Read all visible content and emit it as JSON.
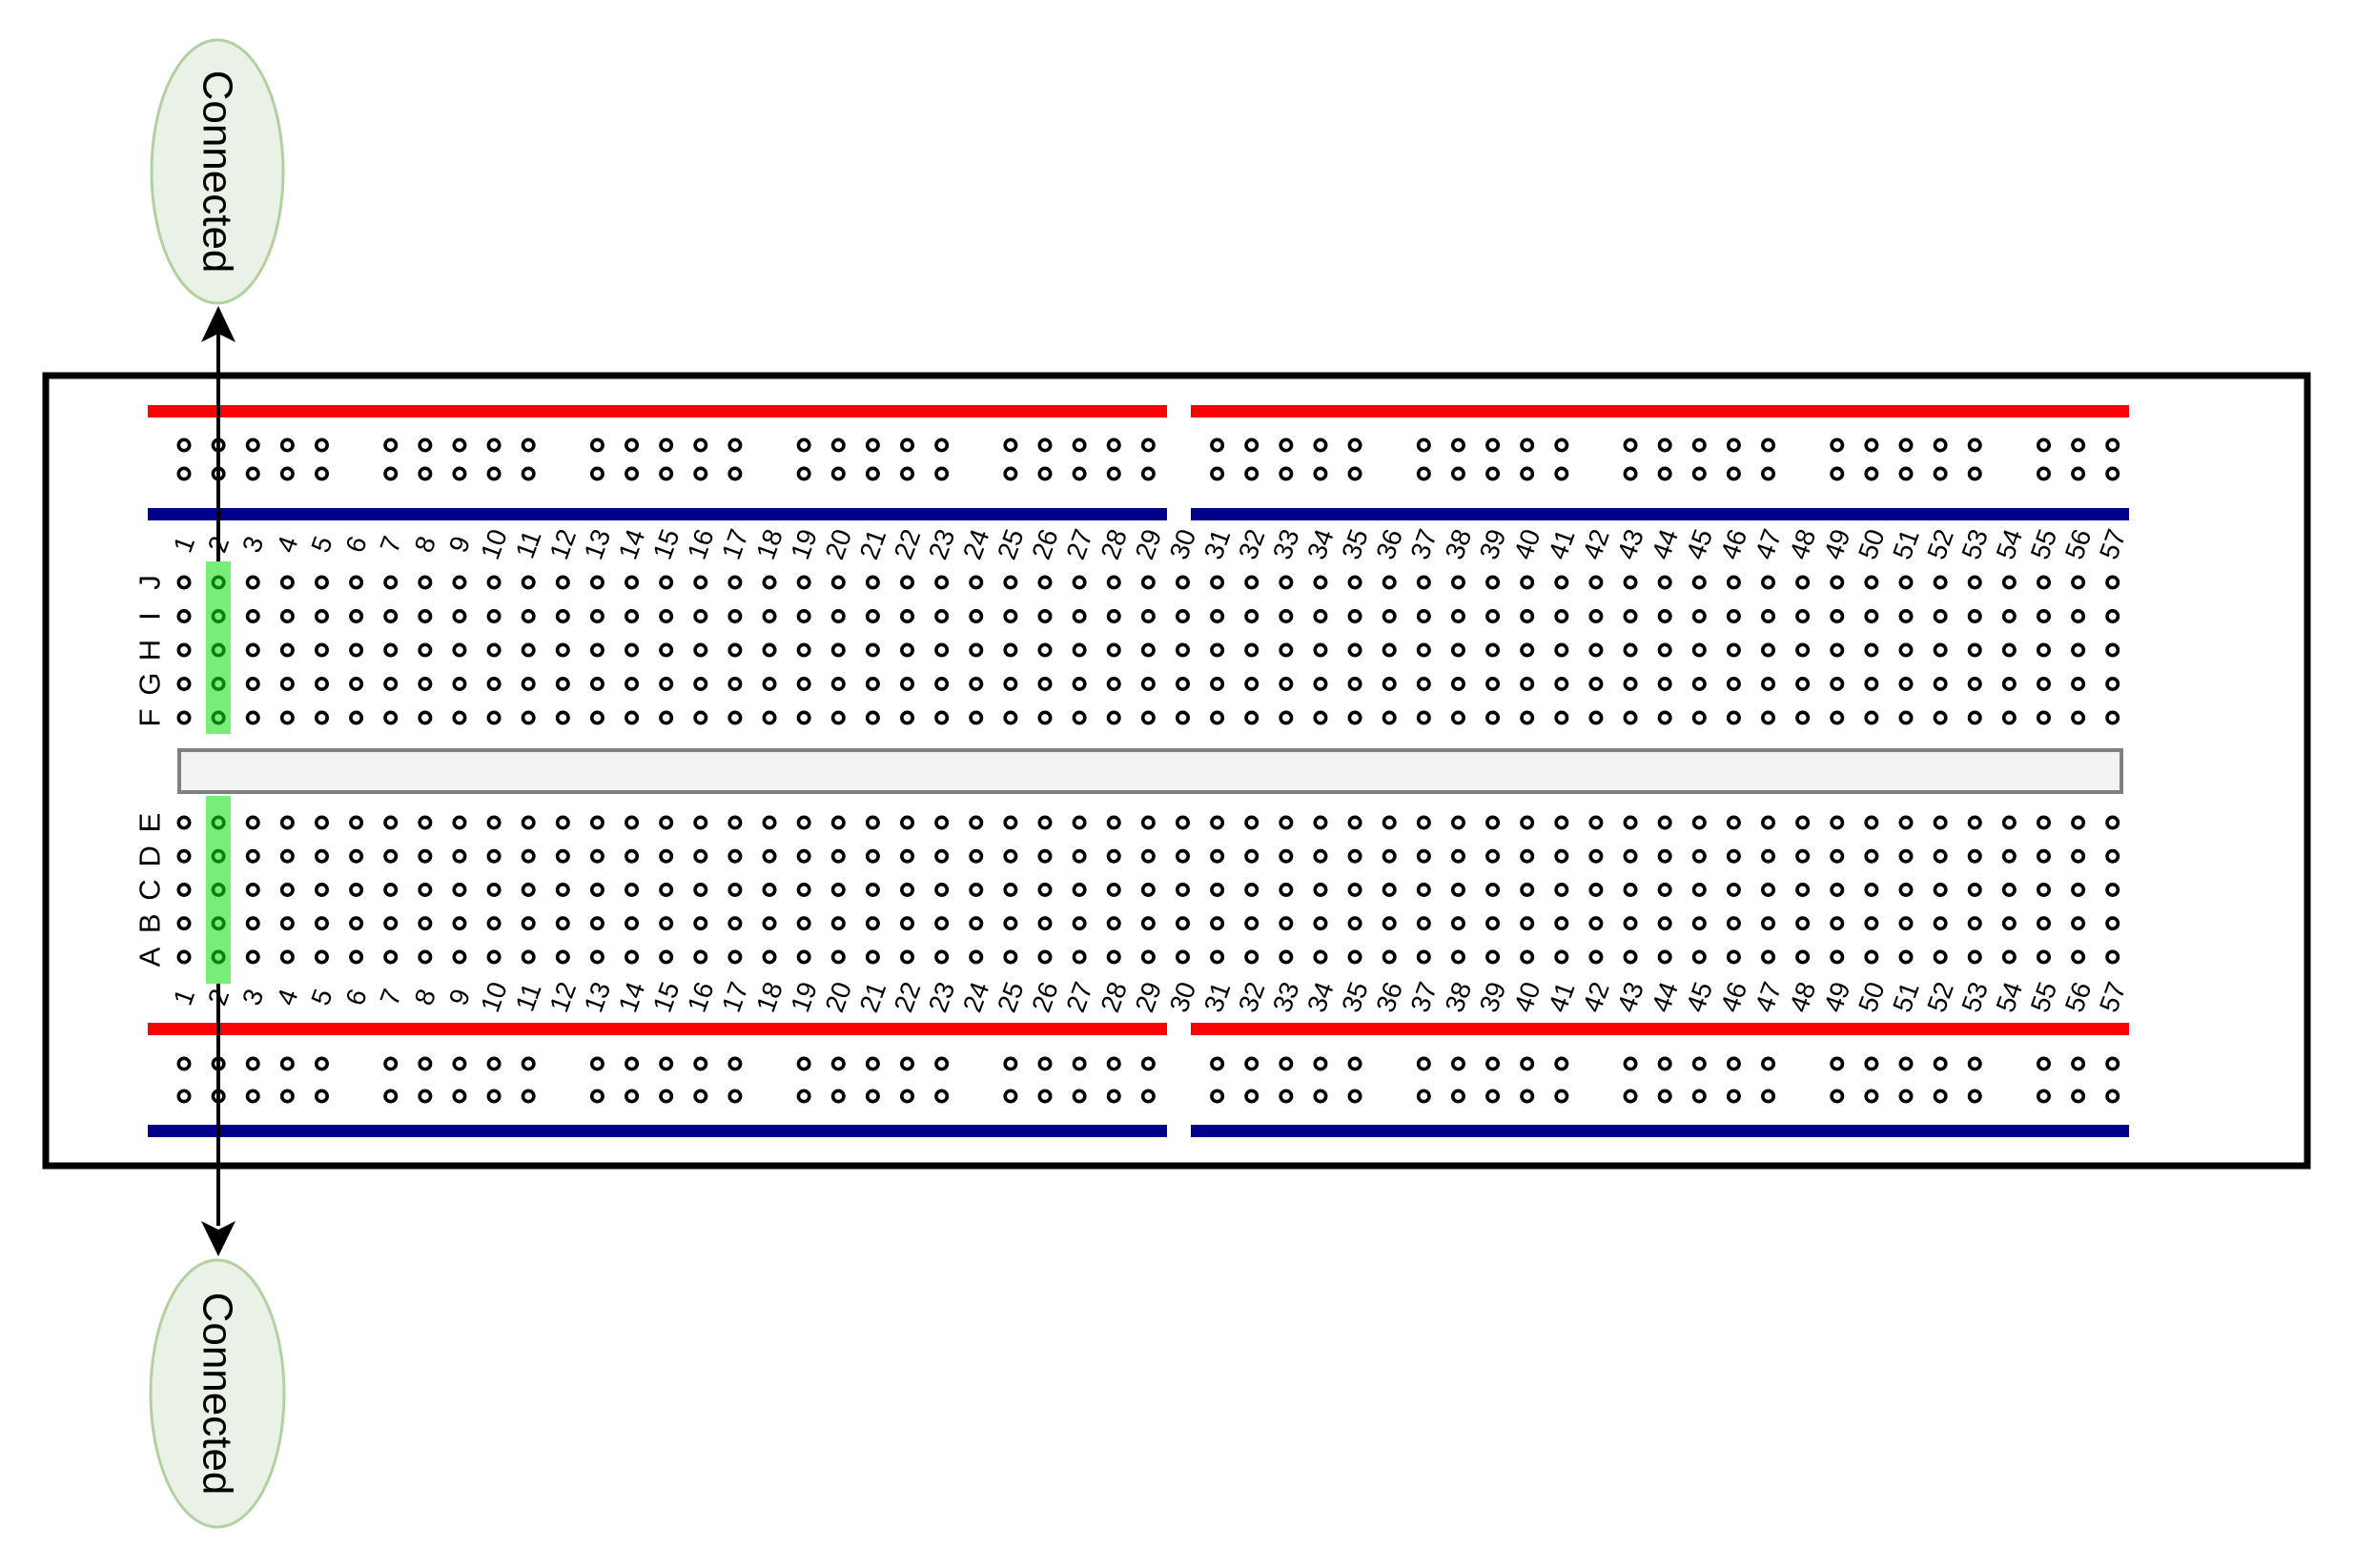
{
  "top_connector": {
    "label": "Connected"
  },
  "bottom_connector": {
    "label": "Connected"
  },
  "breadboard": {
    "column_count": 57,
    "column_labels": [
      "1",
      "2",
      "3",
      "4",
      "5",
      "6",
      "7",
      "8",
      "9",
      "10",
      "11",
      "12",
      "13",
      "14",
      "15",
      "16",
      "17",
      "18",
      "19",
      "20",
      "21",
      "22",
      "23",
      "24",
      "25",
      "26",
      "27",
      "28",
      "29",
      "30",
      "31",
      "32",
      "33",
      "34",
      "35",
      "36",
      "37",
      "38",
      "39",
      "40",
      "41",
      "42",
      "43",
      "44",
      "45",
      "46",
      "47",
      "48",
      "49",
      "50",
      "51",
      "52",
      "53",
      "54",
      "55",
      "56",
      "57"
    ],
    "top_row_labels": [
      "J",
      "I",
      "H",
      "G",
      "F"
    ],
    "bottom_row_labels": [
      "E",
      "D",
      "C",
      "B",
      "A"
    ],
    "highlighted_column": 2
  },
  "colors": {
    "rail_positive": "#ff0000",
    "rail_negative": "#00008b",
    "hole": "#000000",
    "highlight": "#77ee77",
    "highlight_hole": "#0a820a",
    "board_border": "#000000",
    "board_fill": "#ffffff",
    "channel_fill": "#f2f2f2",
    "channel_border": "#808080",
    "node_fill": "#eaf1e6",
    "node_border": "#b3d1a0",
    "arrow": "#000000"
  }
}
